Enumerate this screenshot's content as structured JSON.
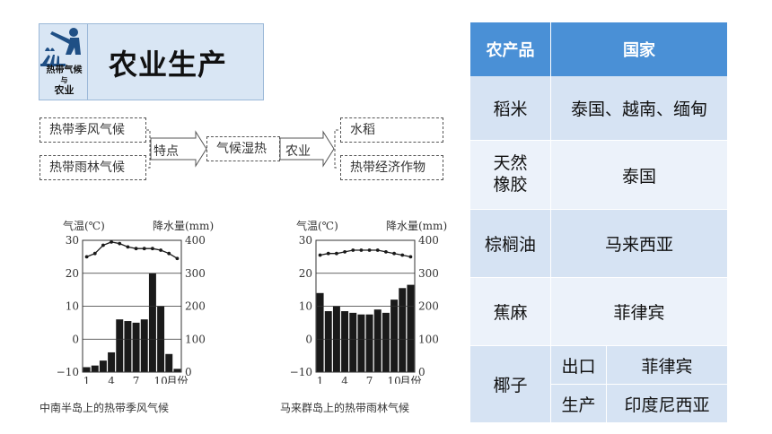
{
  "header": {
    "icon_label_line1": "热带气候",
    "icon_label_line2": "与",
    "icon_label_line3": "农业",
    "title": "农业生产"
  },
  "flow": {
    "climate_monsoon": "热带季风气候",
    "climate_rainforest": "热带雨林气候",
    "arrow1_label": "特点",
    "middle": "气候湿热",
    "arrow2_label": "农业",
    "result_rice": "水稻",
    "result_cash": "热带经济作物"
  },
  "chart_data": [
    {
      "type": "bar+line",
      "caption": "中南半岛上的热带季风气候",
      "y_left_label": "气温(℃)",
      "y_right_label": "降水量(mm)",
      "y_left_ticks": [
        "30",
        "20",
        "10",
        "0",
        "−10"
      ],
      "y_right_ticks": [
        "400",
        "300",
        "200",
        "100",
        "0"
      ],
      "x_ticks": [
        "1",
        "4",
        "7",
        "10"
      ],
      "x_unit": "月份",
      "ylim_temp": [
        -10,
        30
      ],
      "ylim_precip": [
        0,
        400
      ],
      "months": [
        1,
        2,
        3,
        4,
        5,
        6,
        7,
        8,
        9,
        10,
        11,
        12
      ],
      "precipitation": [
        15,
        20,
        35,
        60,
        160,
        155,
        150,
        160,
        300,
        200,
        55,
        10
      ],
      "temperature": [
        25,
        26,
        28.5,
        29.5,
        29,
        28,
        27.5,
        27.5,
        27.5,
        27,
        26,
        24.5
      ]
    },
    {
      "type": "bar+line",
      "caption": "马来群岛上的热带雨林气候",
      "y_left_label": "气温(℃)",
      "y_right_label": "降水量(mm)",
      "y_left_ticks": [
        "30",
        "20",
        "10",
        "0",
        "−10"
      ],
      "y_right_ticks": [
        "400",
        "300",
        "200",
        "100",
        "0"
      ],
      "x_ticks": [
        "1",
        "4",
        "7",
        "10"
      ],
      "x_unit": "月份",
      "ylim_temp": [
        -10,
        30
      ],
      "ylim_precip": [
        0,
        400
      ],
      "months": [
        1,
        2,
        3,
        4,
        5,
        6,
        7,
        8,
        9,
        10,
        11,
        12
      ],
      "precipitation": [
        240,
        185,
        200,
        185,
        180,
        175,
        175,
        190,
        180,
        220,
        255,
        265
      ],
      "temperature": [
        25.5,
        26,
        26,
        26.5,
        27,
        27,
        27,
        27,
        26.5,
        26,
        25.5,
        25
      ]
    }
  ],
  "table": {
    "header_product": "农产品",
    "header_country": "国家",
    "rows": [
      {
        "product": "稻米",
        "country": "泰国、越南、缅甸"
      },
      {
        "product_line1": "天然",
        "product_line2": "橡胶",
        "country": "泰国"
      },
      {
        "product": "棕榈油",
        "country": "马来西亚"
      },
      {
        "product": "蕉麻",
        "country": "菲律宾"
      },
      {
        "product": "椰子",
        "export_label": "出口",
        "export_country": "菲律宾",
        "produce_label": "生产",
        "produce_country": "印度尼西亚"
      }
    ]
  },
  "colors": {
    "table_header": "#4a90d6",
    "row_odd": "#d6e3f3",
    "row_even": "#ecf2fa",
    "icon_panel": "#d9e6f4"
  }
}
